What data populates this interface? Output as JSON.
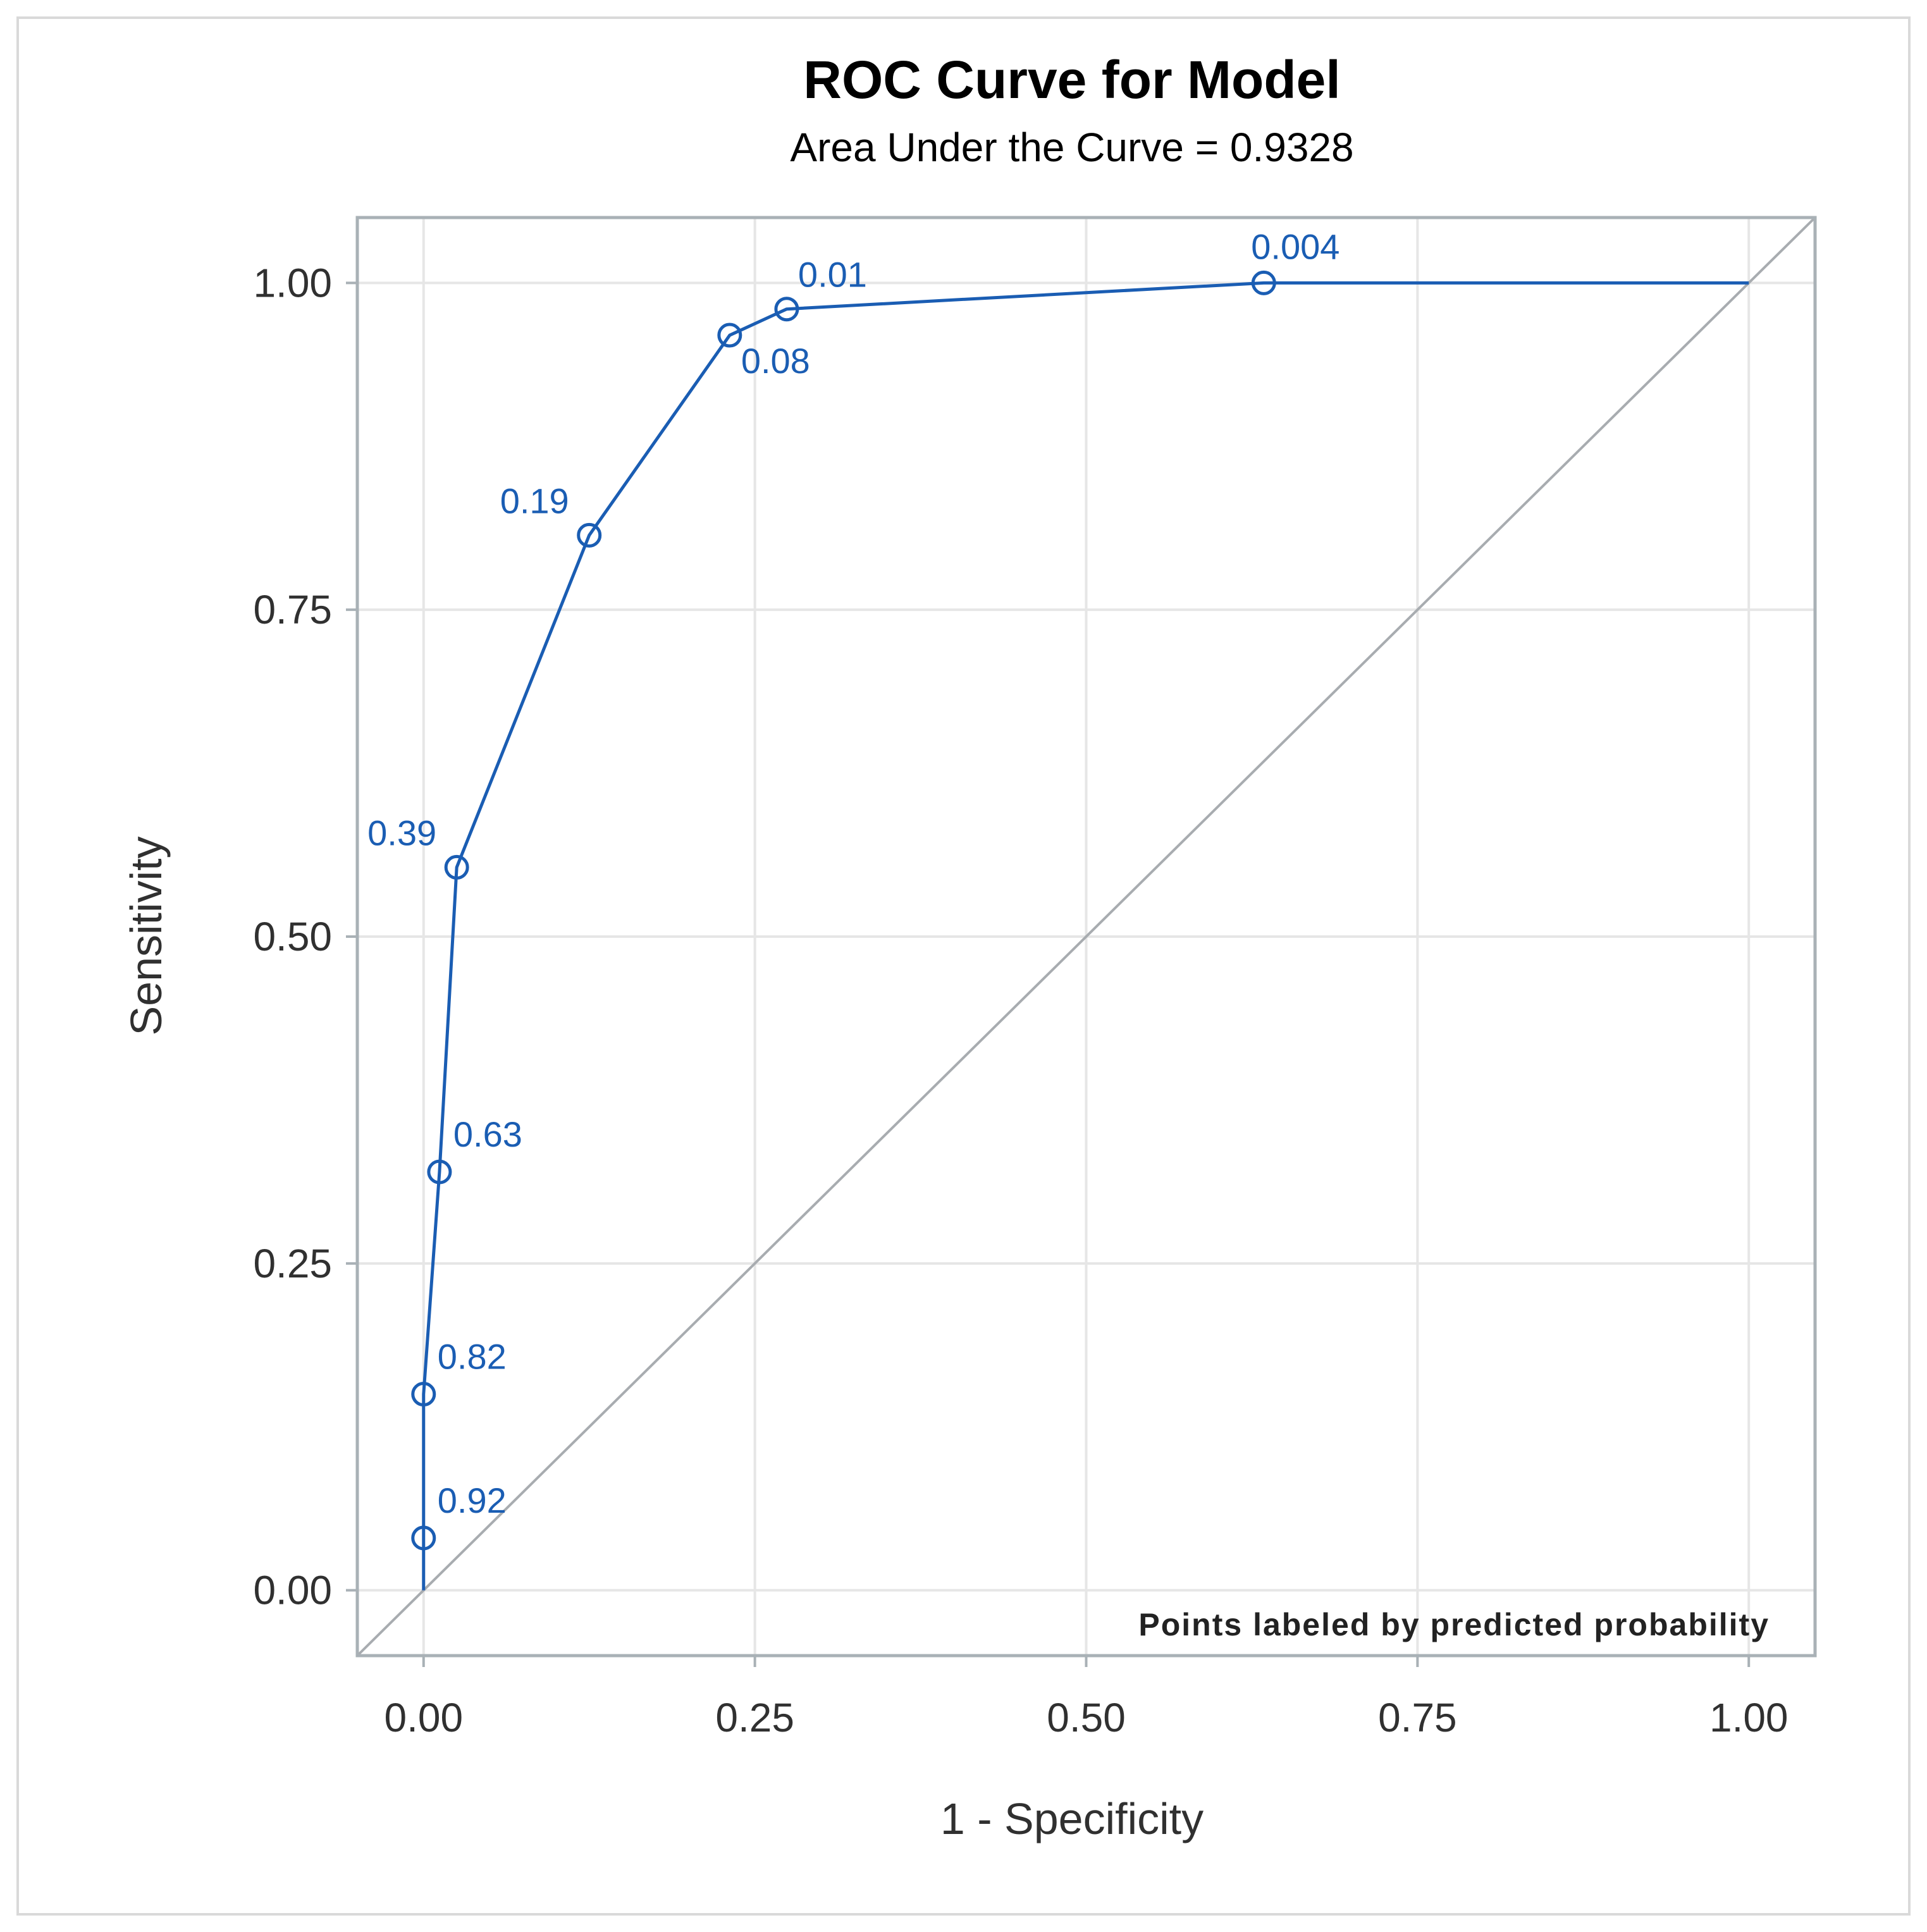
{
  "chart_data": {
    "type": "line",
    "title": "ROC Curve for Model",
    "subtitle": "Area Under the Curve = 0.9328",
    "xlabel": "1 - Specificity",
    "ylabel": "Sensitivity",
    "xlim": [
      -0.05,
      1.05
    ],
    "ylim": [
      -0.05,
      1.05
    ],
    "x_ticks": [
      "0.00",
      "0.25",
      "0.50",
      "0.75",
      "1.00"
    ],
    "y_ticks": [
      "0.00",
      "0.25",
      "0.50",
      "0.75",
      "1.00"
    ],
    "grid": true,
    "note": "Points labeled by predicted probability",
    "curve": [
      {
        "x": 0.0,
        "y": 0.0
      },
      {
        "x": 0.0,
        "y": 0.04,
        "label": "0.92"
      },
      {
        "x": 0.0,
        "y": 0.15,
        "label": "0.82"
      },
      {
        "x": 0.012,
        "y": 0.32,
        "label": "0.63"
      },
      {
        "x": 0.025,
        "y": 0.553,
        "label": "0.39"
      },
      {
        "x": 0.125,
        "y": 0.807,
        "label": "0.19"
      },
      {
        "x": 0.231,
        "y": 0.96,
        "label": "0.08"
      },
      {
        "x": 0.274,
        "y": 0.98,
        "label": "0.01"
      },
      {
        "x": 0.634,
        "y": 1.0,
        "label": "0.004"
      },
      {
        "x": 1.0,
        "y": 1.0
      }
    ],
    "reference_line": {
      "from": [
        0,
        0
      ],
      "to": [
        1,
        1
      ]
    },
    "colors": {
      "curve": "#1a5db3",
      "reference": "#a8acb0",
      "grid": "#e6e6e6",
      "frame": "#a9b1b6"
    }
  }
}
